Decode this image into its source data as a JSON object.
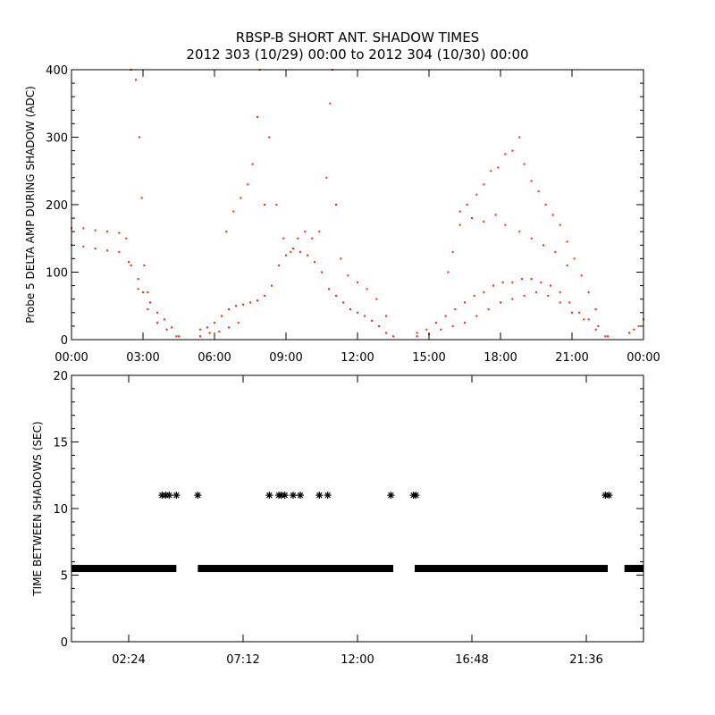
{
  "title": "RBSP-B SHORT ANT. SHADOW TIMES",
  "subtitle": "2012 303 (10/29) 00:00 to 2012 304 (10/30) 00:00",
  "colors": {
    "series_top": "#ff2200",
    "series_bottom": "#000000",
    "axes": "#000000",
    "background": "#ffffff"
  },
  "chart_data": [
    {
      "type": "scatter",
      "ylabel": "Probe 5 DELTA AMP DURING SHADOW (ADC)",
      "xlabel": "",
      "xlim": [
        0,
        24
      ],
      "ylim": [
        0,
        400
      ],
      "x_tick_values": [
        0,
        3,
        6,
        9,
        12,
        15,
        18,
        21,
        24
      ],
      "x_tick_labels": [
        "00:00",
        "03:00",
        "06:00",
        "09:00",
        "12:00",
        "15:00",
        "18:00",
        "21:00",
        "00:00"
      ],
      "y_tick_values": [
        0,
        100,
        200,
        300,
        400
      ],
      "y_tick_labels": [
        "0",
        "100",
        "200",
        "300",
        "400"
      ],
      "grid": false,
      "series": [
        {
          "color": "#ff2200",
          "marker": "dot",
          "points": [
            [
              0.0,
              165
            ],
            [
              0.5,
              165
            ],
            [
              1.0,
              162
            ],
            [
              1.5,
              160
            ],
            [
              2.0,
              158
            ],
            [
              2.3,
              150
            ],
            [
              2.5,
              110
            ],
            [
              2.8,
              90
            ],
            [
              3.0,
              70
            ],
            [
              3.3,
              55
            ],
            [
              3.6,
              40
            ],
            [
              3.9,
              30
            ],
            [
              4.2,
              18
            ],
            [
              4.5,
              5
            ],
            [
              0.0,
              140
            ],
            [
              0.5,
              138
            ],
            [
              1.0,
              135
            ],
            [
              1.5,
              132
            ],
            [
              2.0,
              130
            ],
            [
              2.4,
              115
            ],
            [
              2.8,
              75
            ],
            [
              3.2,
              45
            ],
            [
              3.6,
              25
            ],
            [
              4.0,
              15
            ],
            [
              4.4,
              5
            ],
            [
              2.5,
              400
            ],
            [
              2.7,
              385
            ],
            [
              2.85,
              300
            ],
            [
              2.95,
              210
            ],
            [
              3.05,
              110
            ],
            [
              3.2,
              70
            ],
            [
              5.4,
              15
            ],
            [
              5.7,
              18
            ],
            [
              6.0,
              25
            ],
            [
              6.3,
              35
            ],
            [
              6.6,
              45
            ],
            [
              6.9,
              50
            ],
            [
              7.2,
              52
            ],
            [
              7.5,
              55
            ],
            [
              7.8,
              58
            ],
            [
              8.1,
              65
            ],
            [
              8.4,
              80
            ],
            [
              8.7,
              110
            ],
            [
              9.0,
              125
            ],
            [
              9.3,
              135
            ],
            [
              9.6,
              130
            ],
            [
              9.9,
              125
            ],
            [
              10.2,
              115
            ],
            [
              10.5,
              100
            ],
            [
              10.8,
              75
            ],
            [
              11.1,
              65
            ],
            [
              11.4,
              55
            ],
            [
              11.7,
              45
            ],
            [
              12.0,
              40
            ],
            [
              12.3,
              35
            ],
            [
              12.6,
              28
            ],
            [
              12.9,
              20
            ],
            [
              13.2,
              10
            ],
            [
              13.5,
              5
            ],
            [
              5.4,
              5
            ],
            [
              5.8,
              10
            ],
            [
              6.2,
              12
            ],
            [
              6.6,
              18
            ],
            [
              7.0,
              25
            ],
            [
              6.5,
              160
            ],
            [
              6.8,
              190
            ],
            [
              7.1,
              210
            ],
            [
              7.4,
              230
            ],
            [
              7.6,
              260
            ],
            [
              7.8,
              330
            ],
            [
              7.9,
              400
            ],
            [
              8.1,
              200
            ],
            [
              8.3,
              300
            ],
            [
              8.6,
              200
            ],
            [
              8.9,
              150
            ],
            [
              9.2,
              130
            ],
            [
              9.5,
              150
            ],
            [
              9.8,
              160
            ],
            [
              10.1,
              150
            ],
            [
              10.4,
              160
            ],
            [
              10.7,
              240
            ],
            [
              10.85,
              350
            ],
            [
              10.95,
              400
            ],
            [
              11.1,
              200
            ],
            [
              11.3,
              120
            ],
            [
              11.6,
              95
            ],
            [
              12.0,
              85
            ],
            [
              12.4,
              75
            ],
            [
              12.8,
              60
            ],
            [
              13.2,
              35
            ],
            [
              14.5,
              10
            ],
            [
              14.9,
              15
            ],
            [
              15.3,
              25
            ],
            [
              15.7,
              35
            ],
            [
              16.1,
              45
            ],
            [
              16.5,
              55
            ],
            [
              16.9,
              65
            ],
            [
              17.3,
              70
            ],
            [
              17.7,
              80
            ],
            [
              18.1,
              85
            ],
            [
              18.5,
              85
            ],
            [
              18.9,
              90
            ],
            [
              19.3,
              90
            ],
            [
              19.7,
              85
            ],
            [
              20.1,
              80
            ],
            [
              20.5,
              70
            ],
            [
              20.9,
              55
            ],
            [
              21.3,
              40
            ],
            [
              21.7,
              30
            ],
            [
              22.1,
              20
            ],
            [
              22.5,
              5
            ],
            [
              14.5,
              5
            ],
            [
              15.0,
              8
            ],
            [
              15.5,
              15
            ],
            [
              16.0,
              20
            ],
            [
              16.5,
              25
            ],
            [
              17.0,
              35
            ],
            [
              17.5,
              45
            ],
            [
              18.0,
              55
            ],
            [
              18.5,
              60
            ],
            [
              19.0,
              65
            ],
            [
              19.5,
              70
            ],
            [
              20.0,
              65
            ],
            [
              20.5,
              55
            ],
            [
              21.0,
              40
            ],
            [
              21.5,
              30
            ],
            [
              22.0,
              15
            ],
            [
              22.4,
              5
            ],
            [
              15.8,
              100
            ],
            [
              16.0,
              130
            ],
            [
              16.3,
              170
            ],
            [
              16.6,
              200
            ],
            [
              17.0,
              215
            ],
            [
              17.3,
              230
            ],
            [
              17.6,
              250
            ],
            [
              17.9,
              255
            ],
            [
              18.2,
              275
            ],
            [
              18.5,
              280
            ],
            [
              18.8,
              300
            ],
            [
              19.0,
              260
            ],
            [
              19.3,
              235
            ],
            [
              19.6,
              220
            ],
            [
              19.9,
              200
            ],
            [
              20.2,
              185
            ],
            [
              20.5,
              170
            ],
            [
              20.8,
              145
            ],
            [
              21.1,
              120
            ],
            [
              21.4,
              95
            ],
            [
              21.7,
              70
            ],
            [
              22.0,
              45
            ],
            [
              16.3,
              190
            ],
            [
              16.8,
              180
            ],
            [
              17.3,
              175
            ],
            [
              17.8,
              185
            ],
            [
              18.2,
              170
            ],
            [
              18.8,
              160
            ],
            [
              19.3,
              150
            ],
            [
              19.8,
              140
            ],
            [
              20.3,
              130
            ],
            [
              20.8,
              110
            ],
            [
              23.4,
              10
            ],
            [
              23.6,
              15
            ],
            [
              23.8,
              20
            ],
            [
              24.0,
              30
            ]
          ]
        }
      ]
    },
    {
      "type": "scatter",
      "ylabel": "TIME BETWEEN SHADOWS (SEC)",
      "xlabel": "",
      "xlim": [
        0,
        24
      ],
      "ylim": [
        0,
        20
      ],
      "x_tick_values": [
        2.4,
        7.2,
        12.0,
        16.8,
        21.6
      ],
      "x_tick_labels": [
        "02:24",
        "07:12",
        "12:00",
        "16:48",
        "21:36"
      ],
      "y_tick_values": [
        0,
        5,
        10,
        15,
        20
      ],
      "y_tick_labels": [
        "0",
        "5",
        "10",
        "15",
        "20"
      ],
      "grid": false,
      "series": [
        {
          "color": "#000000",
          "marker": "asterisk",
          "segments": [
            {
              "x_start": 0.0,
              "x_end": 4.4,
              "y": 5.5
            },
            {
              "x_start": 5.3,
              "x_end": 13.5,
              "y": 5.5
            },
            {
              "x_start": 14.4,
              "x_end": 22.5,
              "y": 5.5
            },
            {
              "x_start": 23.2,
              "x_end": 24.0,
              "y": 5.5
            }
          ],
          "points": [
            [
              3.8,
              11
            ],
            [
              3.95,
              11
            ],
            [
              4.1,
              11
            ],
            [
              4.4,
              11
            ],
            [
              5.3,
              11
            ],
            [
              8.3,
              11
            ],
            [
              8.7,
              11
            ],
            [
              8.8,
              11
            ],
            [
              8.95,
              11
            ],
            [
              9.3,
              11
            ],
            [
              9.6,
              11
            ],
            [
              10.4,
              11
            ],
            [
              10.75,
              11
            ],
            [
              13.4,
              11
            ],
            [
              14.35,
              11
            ],
            [
              14.45,
              11
            ],
            [
              22.4,
              11
            ],
            [
              22.55,
              11
            ]
          ]
        }
      ]
    }
  ]
}
